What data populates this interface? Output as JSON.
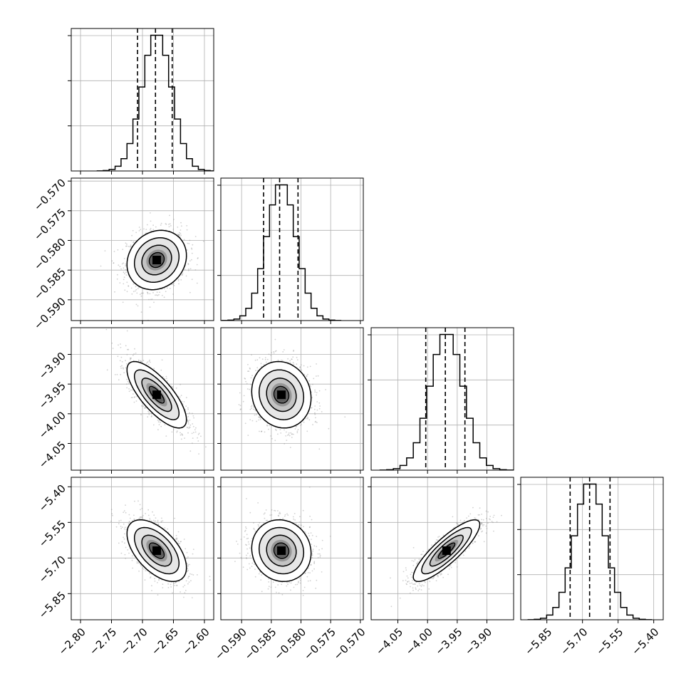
{
  "chart_data": {
    "type": "corner",
    "grid": true,
    "parameters": [
      {
        "range": [
          -2.815,
          -2.585
        ],
        "mean": -2.677,
        "sd": 0.024,
        "quantiles": [
          -2.708,
          -2.679,
          -2.652
        ],
        "ticks": [
          {
            "value": -2.8,
            "label": "−2.80"
          },
          {
            "value": -2.75,
            "label": "−2.75"
          },
          {
            "value": -2.7,
            "label": "−2.70"
          },
          {
            "value": -2.65,
            "label": "−2.65"
          },
          {
            "value": -2.6,
            "label": "−2.60"
          }
        ]
      },
      {
        "range": [
          -0.5935,
          -0.5695
        ],
        "mean": -0.5833,
        "sd": 0.0025,
        "quantiles": [
          -0.5863,
          -0.5836,
          -0.5805
        ],
        "ticks": [
          {
            "value": -0.59,
            "label": "−0.590"
          },
          {
            "value": -0.585,
            "label": "−0.585"
          },
          {
            "value": -0.58,
            "label": "−0.580"
          },
          {
            "value": -0.575,
            "label": "−0.575"
          },
          {
            "value": -0.57,
            "label": "−0.570"
          }
        ]
      },
      {
        "range": [
          -4.095,
          -3.855
        ],
        "mean": -3.968,
        "sd": 0.028,
        "quantiles": [
          -4.003,
          -3.97,
          -3.937
        ],
        "ticks": [
          {
            "value": -4.05,
            "label": "−4.05"
          },
          {
            "value": -4.0,
            "label": "−4.00"
          },
          {
            "value": -3.95,
            "label": "−3.95"
          },
          {
            "value": -3.9,
            "label": "−3.90"
          }
        ]
      },
      {
        "range": [
          -5.96,
          -5.36
        ],
        "mean": -5.669,
        "sd": 0.065,
        "quantiles": [
          -5.752,
          -5.67,
          -5.584
        ],
        "ticks": [
          {
            "value": -5.85,
            "label": "−5.85"
          },
          {
            "value": -5.7,
            "label": "−5.70"
          },
          {
            "value": -5.55,
            "label": "−5.55"
          },
          {
            "value": -5.4,
            "label": "−5.40"
          }
        ]
      }
    ],
    "correlations": [
      [
        1.0,
        0.15,
        -0.75,
        -0.55
      ],
      [
        0.15,
        1.0,
        -0.1,
        -0.08
      ],
      [
        -0.75,
        -0.1,
        1.0,
        0.85
      ],
      [
        -0.55,
        -0.08,
        0.85,
        1.0
      ]
    ],
    "contour_levels_sigma": [
      0.5,
      1.0,
      1.5,
      2.0
    ],
    "histogram_bins": 20,
    "colors": {
      "line": "#000000",
      "grid": "#b0b0b0",
      "points": "#9a9a9a",
      "density_dark": "#000000",
      "density_light": "#ffffff",
      "background": "#ffffff"
    }
  }
}
